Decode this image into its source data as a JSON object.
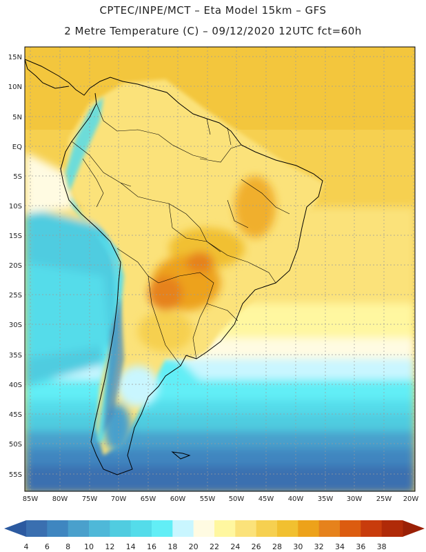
{
  "header": {
    "line1": "CPTEC/INPE/MCT –  Eta Model 15km – GFS",
    "line2": "2 Metre Temperature (C) – 09/12/2020 12UTC fct=60h"
  },
  "axes": {
    "lat_labels": [
      "15N",
      "10N",
      "5N",
      "EQ",
      "5S",
      "10S",
      "15S",
      "20S",
      "25S",
      "30S",
      "35S",
      "40S",
      "45S",
      "50S",
      "55S"
    ],
    "lon_labels": [
      "85W",
      "80W",
      "75W",
      "70W",
      "65W",
      "60W",
      "55W",
      "50W",
      "45W",
      "40W",
      "35W",
      "30W",
      "25W",
      "20W"
    ]
  },
  "colorbar": {
    "labels": [
      "4",
      "6",
      "8",
      "10",
      "12",
      "14",
      "16",
      "18",
      "20",
      "22",
      "24",
      "26",
      "28",
      "30",
      "32",
      "34",
      "36",
      "38"
    ],
    "colors": [
      "#3a6fb0",
      "#3f86c0",
      "#4aa0cc",
      "#4fb8d8",
      "#50cce0",
      "#54dcea",
      "#62eef6",
      "#c9f6ff",
      "#fffbe2",
      "#fff7a0",
      "#fbe27a",
      "#f6d050",
      "#f1c030",
      "#eda21a",
      "#e6821c",
      "#dc5c10",
      "#c83c0c",
      "#b02a08"
    ],
    "under_color": "#2c5aa0",
    "over_color": "#9a2006"
  }
}
